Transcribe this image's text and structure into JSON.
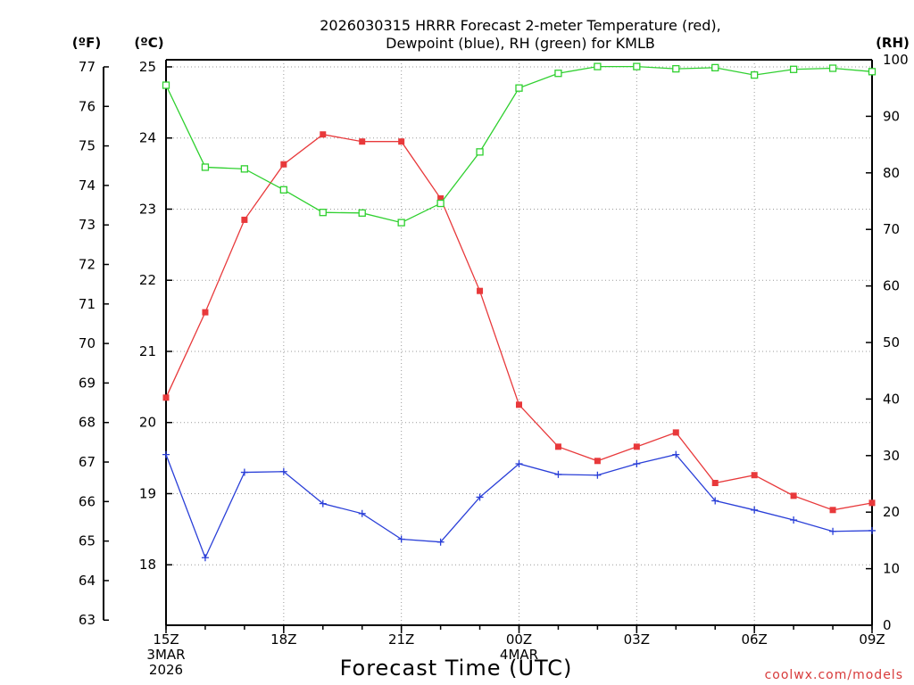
{
  "chart_data": {
    "type": "line",
    "title_line1": "2026030315 HRRR Forecast 2-meter Temperature (red),",
    "title_line2": "Dewpoint (blue), RH (green) for KMLB",
    "xlabel": "Forecast Time (UTC)",
    "credit": "coolwx.com/models",
    "left_unit_f": "(ºF)",
    "left_unit_c": "(ºC)",
    "right_unit": "(RH)",
    "x_hours": [
      0,
      1,
      2,
      3,
      4,
      5,
      6,
      7,
      8,
      9,
      10,
      11,
      12,
      13,
      14,
      15,
      16,
      17,
      18
    ],
    "x_ticks": [
      {
        "hour": 0,
        "lines": [
          "15Z",
          "3MAR",
          "2026"
        ]
      },
      {
        "hour": 3,
        "lines": [
          "18Z"
        ]
      },
      {
        "hour": 6,
        "lines": [
          "21Z"
        ]
      },
      {
        "hour": 9,
        "lines": [
          "00Z",
          "4MAR"
        ]
      },
      {
        "hour": 12,
        "lines": [
          "03Z"
        ]
      },
      {
        "hour": 15,
        "lines": [
          "06Z"
        ]
      },
      {
        "hour": 18,
        "lines": [
          "09Z"
        ]
      }
    ],
    "y_celsius": {
      "range": [
        17.15,
        25.1
      ],
      "ticks": [
        18,
        19,
        20,
        21,
        22,
        23,
        24,
        25
      ]
    },
    "y_fahrenheit": {
      "ticks": [
        63,
        64,
        65,
        66,
        67,
        68,
        69,
        70,
        71,
        72,
        73,
        74,
        75,
        76,
        77
      ]
    },
    "y_rh": {
      "range": [
        0,
        100
      ],
      "ticks": [
        0,
        10,
        20,
        30,
        40,
        50,
        60,
        70,
        80,
        90,
        100
      ]
    },
    "series": [
      {
        "name": "Temperature",
        "unit": "C",
        "color": "#e8393b",
        "values": [
          20.35,
          21.55,
          22.85,
          23.63,
          24.05,
          23.95,
          23.95,
          23.15,
          21.85,
          20.25,
          19.66,
          19.46,
          19.66,
          19.86,
          19.15,
          19.26,
          18.97,
          18.77,
          18.87
        ]
      },
      {
        "name": "Dewpoint",
        "unit": "C",
        "color": "#2a3fd8",
        "values": [
          19.55,
          18.1,
          19.3,
          19.31,
          18.86,
          18.72,
          18.36,
          18.32,
          18.95,
          19.42,
          19.27,
          19.26,
          19.42,
          19.55,
          18.9,
          18.77,
          18.63,
          18.47,
          18.48
        ]
      },
      {
        "name": "RH",
        "unit": "%",
        "color": "#2fd02f",
        "values": [
          95.5,
          81.0,
          80.7,
          77.0,
          73.0,
          72.9,
          71.2,
          74.6,
          83.7,
          95.0,
          97.6,
          98.8,
          98.8,
          98.4,
          98.6,
          97.3,
          98.3,
          98.5,
          97.9
        ]
      }
    ]
  }
}
